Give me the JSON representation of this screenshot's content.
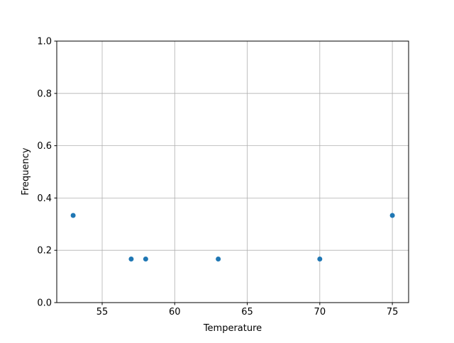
{
  "chart_data": {
    "type": "scatter",
    "title": "",
    "xlabel": "Temperature",
    "ylabel": "Frequency",
    "xlim": [
      51.87,
      76.12
    ],
    "ylim": [
      0,
      1
    ],
    "xticks": [
      55,
      60,
      65,
      70,
      75
    ],
    "xtick_labels": [
      "55",
      "60",
      "65",
      "70",
      "75"
    ],
    "yticks": [
      0,
      0.2,
      0.4,
      0.6,
      0.8,
      1.0
    ],
    "ytick_labels": [
      "0.0",
      "0.2",
      "0.4",
      "0.6",
      "0.8",
      "1.0"
    ],
    "grid": true,
    "x": [
      53,
      57,
      58,
      63,
      70,
      75
    ],
    "y": [
      0.3333,
      0.1667,
      0.1667,
      0.1667,
      0.1667,
      0.3333
    ],
    "color": "#1f77b4"
  }
}
